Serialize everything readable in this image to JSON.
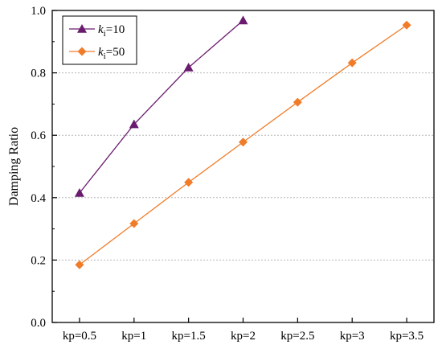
{
  "chart_data": {
    "type": "line",
    "categories": [
      "kp=0.5",
      "kp=1",
      "kp=1.5",
      "kp=2",
      "kp=2.5",
      "kp=3",
      "kp=3.5"
    ],
    "ylabel": "Damping Ratio",
    "xlabel": "",
    "ylim": [
      0.0,
      1.0
    ],
    "yticks": [
      0.0,
      0.2,
      0.4,
      0.6,
      0.8,
      1.0
    ],
    "ytick_labels": [
      "0.0",
      "0.2",
      "0.4",
      "0.6",
      "0.8",
      "1.0"
    ],
    "grid": "horizontal dotted",
    "legend_position": "top-left",
    "series": [
      {
        "name_italic": "k",
        "name_sub": "i",
        "name_rest": "=10",
        "marker": "triangle",
        "color": "#6a1b6e",
        "values": [
          0.415,
          0.635,
          0.817,
          0.968,
          null,
          null,
          null
        ]
      },
      {
        "name_italic": "k",
        "name_sub": "i",
        "name_rest": "=50",
        "marker": "diamond",
        "color": "#f07c2a",
        "values": [
          0.185,
          0.317,
          0.449,
          0.578,
          0.706,
          0.832,
          0.953
        ]
      }
    ]
  }
}
